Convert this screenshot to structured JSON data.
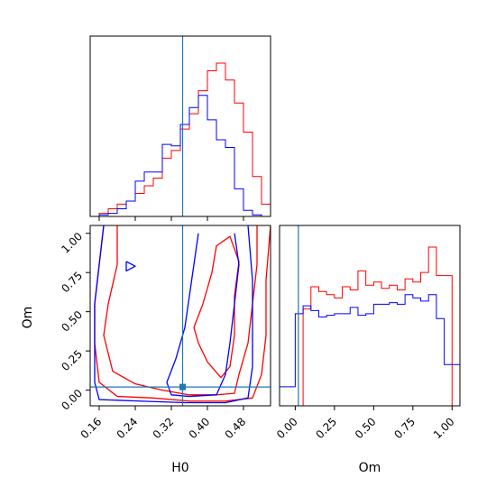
{
  "chart_data": {
    "type": "corner",
    "parameters": [
      "H0",
      "Om"
    ],
    "series_colors": {
      "series_1": "#ff0000",
      "series_2": "#0000ff"
    },
    "truth": {
      "H0": 0.345,
      "Om": 0.02,
      "color": "#1f77b4"
    },
    "panels": [
      {
        "id": "H0-marginal",
        "type": "step-histogram",
        "x_range": [
          0.14,
          0.54
        ],
        "bin_edges": [
          0.14,
          0.16,
          0.18,
          0.2,
          0.22,
          0.24,
          0.26,
          0.28,
          0.3,
          0.32,
          0.34,
          0.36,
          0.38,
          0.4,
          0.42,
          0.44,
          0.46,
          0.48,
          0.5,
          0.52,
          0.54
        ],
        "series": [
          {
            "id": "series_1",
            "color": "#ff0000",
            "values": [
              0.0,
              0.02,
              0.05,
              0.08,
              0.1,
              0.15,
              0.2,
              0.25,
              0.38,
              0.43,
              0.57,
              0.67,
              0.82,
              0.95,
              1.0,
              0.89,
              0.74,
              0.55,
              0.26,
              0.08
            ]
          },
          {
            "id": "series_2",
            "color": "#0000ff",
            "values": [
              0.0,
              0.01,
              0.02,
              0.05,
              0.1,
              0.23,
              0.29,
              0.29,
              0.47,
              0.46,
              0.6,
              0.71,
              0.79,
              0.63,
              0.5,
              0.45,
              0.18,
              0.04,
              0.01,
              0.0
            ]
          }
        ]
      },
      {
        "id": "H0-Om-joint",
        "type": "contour",
        "x_range": [
          0.14,
          0.54
        ],
        "y_range": [
          -0.1,
          1.05
        ],
        "series": [
          {
            "id": "series_1",
            "color": "#ff0000",
            "contours": [
              [
                [
                  0.2,
                  1.05
                ],
                [
                  0.2,
                  0.8
                ],
                [
                  0.18,
                  0.55
                ],
                [
                  0.17,
                  0.35
                ],
                [
                  0.19,
                  0.12
                ],
                [
                  0.24,
                  0.04
                ],
                [
                  0.3,
                  0.0
                ],
                [
                  0.36,
                  -0.03
                ],
                [
                  0.42,
                  -0.03
                ],
                [
                  0.46,
                  -0.02
                ],
                [
                  0.47,
                  0.1
                ],
                [
                  0.49,
                  0.3
                ],
                [
                  0.5,
                  0.55
                ],
                [
                  0.51,
                  0.8
                ],
                [
                  0.51,
                  1.05
                ]
              ],
              [
                [
                  0.17,
                  1.05
                ],
                [
                  0.16,
                  0.8
                ],
                [
                  0.15,
                  0.55
                ],
                [
                  0.15,
                  0.3
                ],
                [
                  0.16,
                  0.05
                ],
                [
                  0.2,
                  -0.04
                ],
                [
                  0.28,
                  -0.05
                ],
                [
                  0.36,
                  -0.07
                ],
                [
                  0.44,
                  -0.07
                ],
                [
                  0.5,
                  -0.05
                ],
                [
                  0.52,
                  0.1
                ],
                [
                  0.53,
                  0.35
                ],
                [
                  0.53,
                  0.7
                ],
                [
                  0.54,
                  1.05
                ]
              ],
              [
                [
                  0.37,
                  0.4
                ],
                [
                  0.38,
                  0.3
                ],
                [
                  0.4,
                  0.18
                ],
                [
                  0.43,
                  0.08
                ],
                [
                  0.45,
                  0.15
                ],
                [
                  0.46,
                  0.35
                ],
                [
                  0.46,
                  0.6
                ],
                [
                  0.47,
                  0.82
                ],
                [
                  0.45,
                  0.98
                ],
                [
                  0.42,
                  0.92
                ],
                [
                  0.41,
                  0.75
                ],
                [
                  0.39,
                  0.55
                ],
                [
                  0.37,
                  0.4
                ]
              ]
            ]
          },
          {
            "id": "series_2",
            "color": "#0000ff",
            "contours": [
              [
                [
                  0.38,
                  1.0
                ],
                [
                  0.37,
                  0.8
                ],
                [
                  0.36,
                  0.6
                ],
                [
                  0.35,
                  0.4
                ],
                [
                  0.33,
                  0.2
                ],
                [
                  0.31,
                  0.05
                ],
                [
                  0.32,
                  -0.03
                ],
                [
                  0.36,
                  -0.04
                ],
                [
                  0.42,
                  -0.03
                ],
                [
                  0.44,
                  0.1
                ],
                [
                  0.45,
                  0.3
                ],
                [
                  0.46,
                  0.55
                ],
                [
                  0.47,
                  0.8
                ],
                [
                  0.46,
                  1.0
                ]
              ],
              [
                [
                  0.17,
                  1.05
                ],
                [
                  0.16,
                  0.8
                ],
                [
                  0.15,
                  0.55
                ],
                [
                  0.15,
                  0.3
                ],
                [
                  0.15,
                  0.05
                ],
                [
                  0.16,
                  -0.06
                ],
                [
                  0.25,
                  -0.07
                ],
                [
                  0.35,
                  -0.08
                ],
                [
                  0.44,
                  -0.08
                ],
                [
                  0.49,
                  -0.05
                ],
                [
                  0.5,
                  0.15
                ],
                [
                  0.5,
                  0.4
                ],
                [
                  0.5,
                  0.7
                ],
                [
                  0.49,
                  1.05
                ]
              ],
              [
                [
                  0.22,
                  0.82
                ],
                [
                  0.24,
                  0.79
                ],
                [
                  0.22,
                  0.76
                ],
                [
                  0.22,
                  0.82
                ]
              ]
            ]
          }
        ]
      },
      {
        "id": "Om-marginal",
        "type": "step-histogram",
        "x_range": [
          -0.1,
          1.05
        ],
        "bin_edges": [
          -0.1,
          -0.05,
          0.0,
          0.05,
          0.1,
          0.15,
          0.2,
          0.25,
          0.3,
          0.35,
          0.4,
          0.45,
          0.5,
          0.55,
          0.6,
          0.65,
          0.7,
          0.75,
          0.8,
          0.85,
          0.9,
          0.95,
          1.0,
          1.05
        ],
        "series": [
          {
            "id": "series_1",
            "color": "#ff0000",
            "values": [
              0.0,
              0.0,
              0.0,
              0.61,
              0.75,
              0.72,
              0.7,
              0.68,
              0.75,
              0.73,
              0.85,
              0.76,
              0.78,
              0.74,
              0.76,
              0.73,
              0.8,
              0.78,
              0.84,
              1.0,
              0.82,
              0.82,
              0.0
            ]
          },
          {
            "id": "series_2",
            "color": "#0000ff",
            "values": [
              0.12,
              0.12,
              0.58,
              0.63,
              0.6,
              0.56,
              0.57,
              0.58,
              0.58,
              0.62,
              0.57,
              0.58,
              0.64,
              0.64,
              0.65,
              0.64,
              0.7,
              0.68,
              0.66,
              0.7,
              0.55,
              0.26,
              0.26
            ]
          }
        ]
      }
    ],
    "axes": {
      "H0": {
        "label": "H0",
        "ticks": [
          0.16,
          0.24,
          0.32,
          0.4,
          0.48
        ],
        "tick_labels": [
          "0.16",
          "0.24",
          "0.32",
          "0.40",
          "0.48"
        ]
      },
      "Om": {
        "label": "Om",
        "ticks": [
          0.0,
          0.25,
          0.5,
          0.75,
          1.0
        ],
        "tick_labels": [
          "0.00",
          "0.25",
          "0.50",
          "0.75",
          "1.00"
        ]
      }
    }
  }
}
